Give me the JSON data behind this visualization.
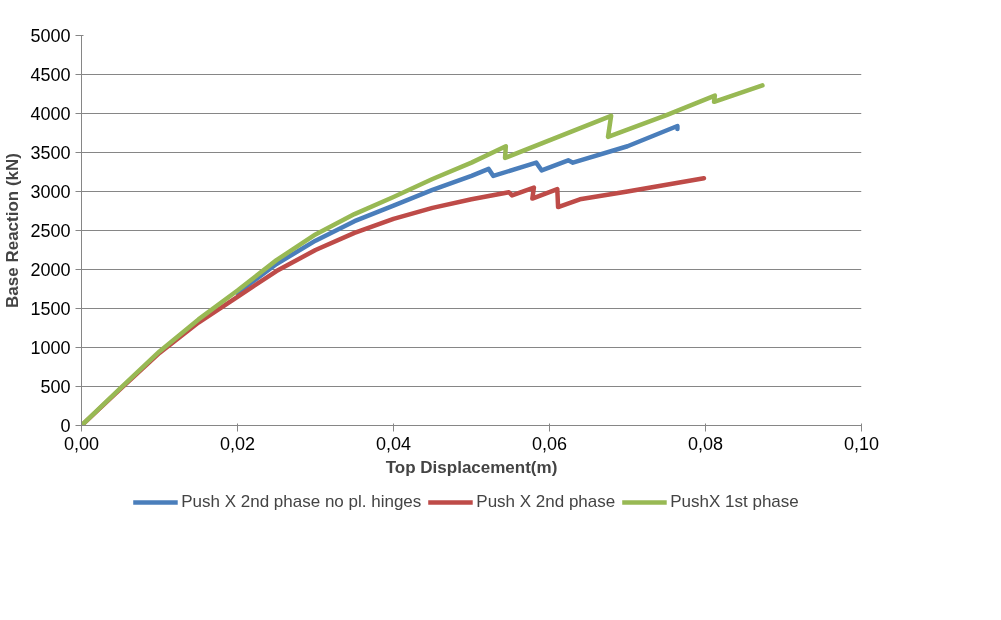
{
  "chart_data": {
    "type": "line",
    "xlabel": "Top Displacement(m)",
    "ylabel": "Base Reaction (kN)",
    "xlim": [
      0,
      0.1
    ],
    "ylim": [
      0,
      5000
    ],
    "xticks": [
      {
        "value": 0,
        "label": "0,00"
      },
      {
        "value": 0.02,
        "label": "0,02"
      },
      {
        "value": 0.04,
        "label": "0,04"
      },
      {
        "value": 0.06,
        "label": "0,06"
      },
      {
        "value": 0.08,
        "label": "0,08"
      },
      {
        "value": 0.1,
        "label": "0,10"
      }
    ],
    "yticks": [
      0,
      500,
      1000,
      1500,
      2000,
      2500,
      3000,
      3500,
      4000,
      4500,
      5000
    ],
    "grid": "y",
    "legend": "bottom",
    "marker": "none",
    "line_style": "solid",
    "series": [
      {
        "name": "Push X 2nd phase no pl. hinges",
        "color": "#4a7ebb",
        "x": [
          0.02,
          0.025,
          0.03,
          0.035,
          0.04,
          0.045,
          0.05,
          0.0522,
          0.0528,
          0.0583,
          0.059,
          0.0624,
          0.063,
          0.07,
          0.0764,
          0.0764
        ],
        "values": [
          1700,
          2070,
          2370,
          2620,
          2820,
          3020,
          3200,
          3290,
          3200,
          3370,
          3270,
          3400,
          3370,
          3580,
          3840,
          3800
        ]
      },
      {
        "name": "Push X 2nd phase",
        "color": "#be4b48",
        "x": [
          0,
          0.005,
          0.01,
          0.015,
          0.02,
          0.025,
          0.03,
          0.035,
          0.04,
          0.045,
          0.05,
          0.0548,
          0.0552,
          0.058,
          0.0578,
          0.061,
          0.0611,
          0.0639,
          0.07,
          0.0798
        ],
        "values": [
          0,
          470,
          930,
          1320,
          1650,
          1980,
          2250,
          2470,
          2650,
          2790,
          2900,
          2990,
          2950,
          3050,
          2910,
          3030,
          2800,
          2900,
          3000,
          3170
        ]
      },
      {
        "name": "PushX 1st phase",
        "color": "#98b954",
        "x": [
          0,
          0.005,
          0.01,
          0.015,
          0.02,
          0.025,
          0.03,
          0.035,
          0.04,
          0.045,
          0.05,
          0.0544,
          0.0543,
          0.0679,
          0.0675,
          0.075,
          0.0812,
          0.0811,
          0.0873
        ],
        "values": [
          0,
          480,
          950,
          1360,
          1730,
          2120,
          2450,
          2710,
          2930,
          3160,
          3370,
          3580,
          3430,
          3970,
          3700,
          3980,
          4230,
          4150,
          4360
        ]
      }
    ]
  }
}
